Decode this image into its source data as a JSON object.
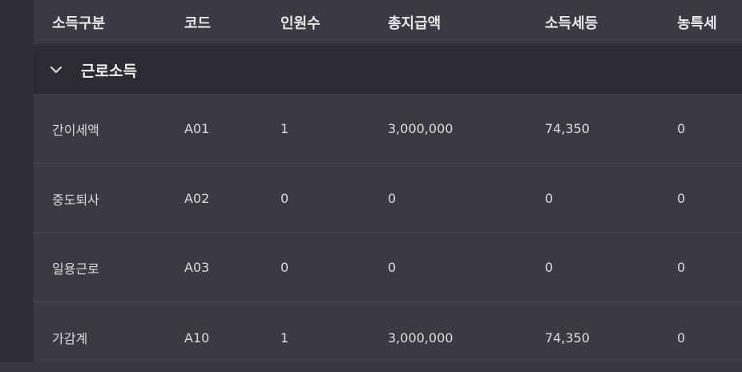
{
  "columns": [
    "소득구분",
    "코드",
    "인원수",
    "총지급액",
    "소득세등",
    "농특세"
  ],
  "group": {
    "label": "근로소득",
    "icon": "chevron-down-icon"
  },
  "rows": [
    [
      "간이세액",
      "A01",
      "1",
      "3,000,000",
      "74,350",
      "0"
    ],
    [
      "중도퇴사",
      "A02",
      "0",
      "0",
      "0",
      "0"
    ],
    [
      "일용근로",
      "A03",
      "0",
      "0",
      "0",
      "0"
    ],
    [
      "가감계",
      "A10",
      "1",
      "3,000,000",
      "74,350",
      "0"
    ]
  ]
}
